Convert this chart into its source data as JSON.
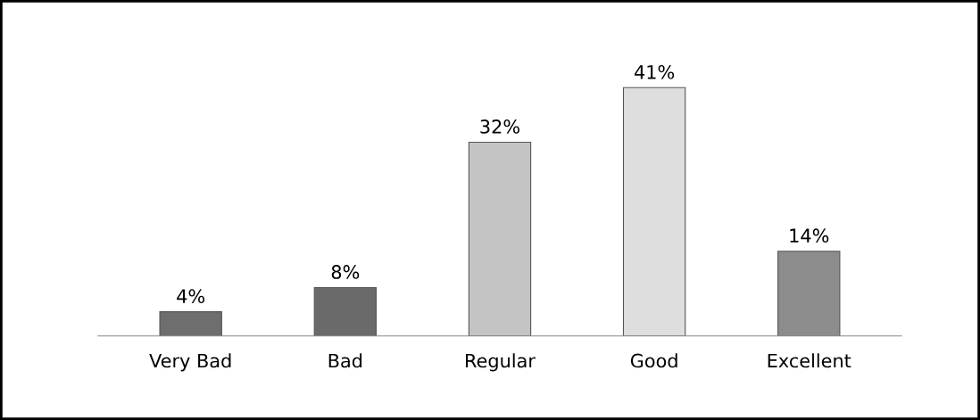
{
  "chart_data": {
    "type": "bar",
    "categories": [
      "Very Bad",
      "Bad",
      "Regular",
      "Good",
      "Excellent"
    ],
    "values": [
      4,
      8,
      32,
      41,
      14
    ],
    "value_labels": [
      "4%",
      "8%",
      "32%",
      "41%",
      "14%"
    ],
    "colors": [
      "#6e6e6e",
      "#6a6a6a",
      "#c4c4c4",
      "#dedede",
      "#8c8c8c"
    ],
    "grid": false,
    "legend": false
  }
}
